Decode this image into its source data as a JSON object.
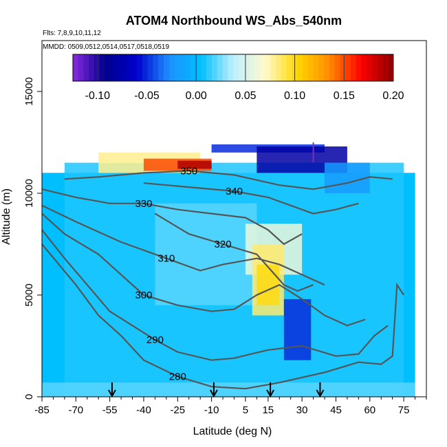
{
  "chart_data": {
    "type": "heatmap",
    "title": "ATOM4 Northbound WS_Abs_540nm",
    "subtitle_flights": "Flts: 7,8,9,10,11,12",
    "subtitle_dates": "MMDD: 0509,0512,0514,0517,0518,0519",
    "xlabel": "Latitude (deg N)",
    "ylabel": "Altitude (m)",
    "xlim": [
      -85,
      85
    ],
    "ylim": [
      0,
      17500
    ],
    "x_ticks": [
      -85,
      -70,
      -55,
      -40,
      -25,
      -10,
      5,
      15,
      30,
      45,
      60,
      75
    ],
    "x_tick_labels": [
      "-85",
      "-70",
      "-55",
      "-40",
      "-25",
      "-10",
      "5",
      "15",
      "30",
      "45",
      "60",
      "75"
    ],
    "y_ticks": [
      0,
      5000,
      10000,
      15000
    ],
    "y_tick_labels": [
      "0",
      "5000",
      "10000",
      "15000"
    ],
    "colorbar": {
      "range": [
        -0.125,
        0.2
      ],
      "ticks": [
        -0.1,
        -0.05,
        0.0,
        0.05,
        0.1,
        0.15,
        0.2
      ],
      "tick_labels": [
        "-0.10",
        "-0.05",
        "0.00",
        "0.05",
        "0.10",
        "0.15",
        "0.20"
      ],
      "colors": [
        "#8a2be2",
        "#00008b",
        "#0000cd",
        "#1e90ff",
        "#00bfff",
        "#bfefff",
        "#fffacd",
        "#ffd700",
        "#ff8c00",
        "#ff0000",
        "#8b0000"
      ]
    },
    "background_value": 0.0,
    "heat_regions": [
      {
        "x": [
          -85,
          80
        ],
        "y": [
          0,
          11000
        ],
        "value": 0.005
      },
      {
        "x": [
          -75,
          75
        ],
        "y": [
          0,
          11500
        ],
        "value": 0.01
      },
      {
        "x": [
          -35,
          10
        ],
        "y": [
          4500,
          9500
        ],
        "value": 0.02
      },
      {
        "x": [
          5,
          30
        ],
        "y": [
          6000,
          8500
        ],
        "value": 0.06
      },
      {
        "x": [
          8,
          22
        ],
        "y": [
          4000,
          7500
        ],
        "value": 0.085
      },
      {
        "x": [
          10,
          20
        ],
        "y": [
          4500,
          6500
        ],
        "value": 0.1
      },
      {
        "x": [
          22,
          34
        ],
        "y": [
          1800,
          4800
        ],
        "value": -0.05
      },
      {
        "x": [
          -85,
          80
        ],
        "y": [
          0,
          700
        ],
        "value": 0.02
      },
      {
        "x": [
          -60,
          -15
        ],
        "y": [
          11000,
          12000
        ],
        "value": 0.08
      },
      {
        "x": [
          -40,
          -10
        ],
        "y": [
          11100,
          11700
        ],
        "value": 0.15
      },
      {
        "x": [
          -25,
          -10
        ],
        "y": [
          11200,
          11600
        ],
        "value": 0.19
      },
      {
        "x": [
          -10,
          40
        ],
        "y": [
          12000,
          12400
        ],
        "value": -0.05
      },
      {
        "x": [
          10,
          50
        ],
        "y": [
          11000,
          12300
        ],
        "value": -0.08
      },
      {
        "x": [
          40,
          60
        ],
        "y": [
          10000,
          11500
        ],
        "value": -0.02
      }
    ],
    "contours": [
      {
        "label": "280",
        "points": [
          [
            -85,
            7500
          ],
          [
            -70,
            5500
          ],
          [
            -60,
            4000
          ],
          [
            -50,
            3000
          ],
          [
            -40,
            1800
          ],
          [
            -25,
            1000
          ],
          [
            -10,
            500
          ],
          [
            5,
            400
          ],
          [
            20,
            700
          ],
          [
            40,
            1200
          ],
          [
            55,
            1700
          ],
          [
            65,
            1600
          ],
          [
            70,
            2000
          ],
          [
            72,
            5500
          ],
          [
            75,
            5000
          ]
        ]
      },
      {
        "label": "290",
        "points": [
          [
            -85,
            8200
          ],
          [
            -75,
            6800
          ],
          [
            -65,
            5500
          ],
          [
            -55,
            4200
          ],
          [
            -45,
            3500
          ],
          [
            -35,
            2800
          ],
          [
            -25,
            2200
          ],
          [
            -10,
            1800
          ],
          [
            0,
            1900
          ],
          [
            15,
            2300
          ],
          [
            30,
            2500
          ],
          [
            45,
            2000
          ],
          [
            55,
            2100
          ],
          [
            62,
            3000
          ],
          [
            68,
            3500
          ]
        ]
      },
      {
        "label": "300",
        "points": [
          [
            -85,
            9000
          ],
          [
            -75,
            8000
          ],
          [
            -60,
            7000
          ],
          [
            -50,
            6000
          ],
          [
            -40,
            5000
          ],
          [
            -25,
            4500
          ],
          [
            -10,
            4200
          ],
          [
            0,
            4300
          ],
          [
            10,
            5000
          ],
          [
            20,
            5500
          ],
          [
            30,
            4800
          ],
          [
            40,
            4000
          ],
          [
            50,
            3500
          ],
          [
            58,
            3800
          ]
        ]
      },
      {
        "label": "310",
        "points": [
          [
            -85,
            9400
          ],
          [
            -70,
            8600
          ],
          [
            -50,
            7600
          ],
          [
            -30,
            6800
          ],
          [
            -15,
            6200
          ],
          [
            -5,
            6500
          ],
          [
            10,
            6800
          ],
          [
            20,
            6500
          ],
          [
            30,
            6000
          ],
          [
            40,
            5500
          ]
        ]
      },
      {
        "label": "320",
        "points": [
          [
            -35,
            9000
          ],
          [
            -20,
            8000
          ],
          [
            -5,
            7500
          ],
          [
            10,
            7000
          ],
          [
            18,
            6000
          ],
          [
            22,
            5500
          ],
          [
            28,
            5200
          ],
          [
            35,
            5500
          ]
        ]
      },
      {
        "label": "330",
        "points": [
          [
            -85,
            10200
          ],
          [
            -70,
            9800
          ],
          [
            -55,
            9500
          ],
          [
            -40,
            9500
          ],
          [
            -25,
            9200
          ],
          [
            -10,
            9000
          ],
          [
            5,
            8800
          ],
          [
            15,
            8200
          ],
          [
            22,
            7500
          ],
          [
            30,
            8000
          ]
        ]
      },
      {
        "label": "340",
        "points": [
          [
            -40,
            10500
          ],
          [
            -20,
            10300
          ],
          [
            0,
            10100
          ],
          [
            15,
            9800
          ],
          [
            25,
            9400
          ],
          [
            35,
            9000
          ],
          [
            45,
            9200
          ],
          [
            55,
            9500
          ]
        ]
      },
      {
        "label": "350",
        "points": [
          [
            -75,
            10700
          ],
          [
            -60,
            10800
          ],
          [
            -40,
            11000
          ],
          [
            -20,
            11100
          ],
          [
            0,
            10900
          ],
          [
            20,
            10400
          ],
          [
            35,
            10200
          ],
          [
            50,
            10500
          ],
          [
            60,
            10800
          ],
          [
            70,
            10700
          ]
        ]
      }
    ],
    "markers_x": [
      -54,
      -9,
      16,
      38
    ],
    "marker_top_x": 35
  }
}
